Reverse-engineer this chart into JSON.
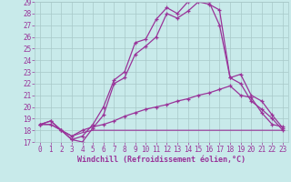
{
  "hours": [
    0,
    1,
    2,
    3,
    4,
    5,
    6,
    7,
    8,
    9,
    10,
    11,
    12,
    13,
    14,
    15,
    16,
    17,
    18,
    19,
    20,
    21,
    22,
    23
  ],
  "line1": [
    18.5,
    18.8,
    18.0,
    17.2,
    17.0,
    18.2,
    19.3,
    22.0,
    22.5,
    24.5,
    25.2,
    26.0,
    28.0,
    27.6,
    28.2,
    29.0,
    28.8,
    28.3,
    22.5,
    22.8,
    21.0,
    20.5,
    19.3,
    18.2
  ],
  "line2": [
    18.5,
    18.8,
    18.0,
    17.2,
    17.5,
    18.5,
    20.0,
    22.3,
    23.0,
    25.5,
    25.8,
    27.5,
    28.5,
    28.0,
    29.0,
    29.2,
    29.0,
    27.0,
    22.5,
    22.0,
    20.5,
    19.8,
    19.0,
    18.0
  ],
  "line3": [
    18.5,
    18.5,
    18.0,
    17.5,
    18.0,
    18.3,
    18.5,
    18.8,
    19.2,
    19.5,
    19.8,
    20.0,
    20.2,
    20.5,
    20.7,
    21.0,
    21.2,
    21.5,
    21.8,
    21.0,
    20.8,
    19.5,
    18.5,
    18.3
  ],
  "line4": [
    18.5,
    18.5,
    18.0,
    17.5,
    17.8,
    18.0,
    18.0,
    18.0,
    18.0,
    18.0,
    18.0,
    18.0,
    18.0,
    18.0,
    18.0,
    18.0,
    18.0,
    18.0,
    18.0,
    18.0,
    18.0,
    18.0,
    18.0,
    18.0
  ],
  "ylim": [
    17,
    29
  ],
  "xlim": [
    -0.5,
    23.5
  ],
  "yticks": [
    17,
    18,
    19,
    20,
    21,
    22,
    23,
    24,
    25,
    26,
    27,
    28,
    29
  ],
  "xticks": [
    0,
    1,
    2,
    3,
    4,
    5,
    6,
    7,
    8,
    9,
    10,
    11,
    12,
    13,
    14,
    15,
    16,
    17,
    18,
    19,
    20,
    21,
    22,
    23
  ],
  "xlabel": "Windchill (Refroidissement éolien,°C)",
  "line_color": "#993399",
  "bg_color": "#c8eaea",
  "grid_color": "#a8c8c8",
  "marker": "+"
}
